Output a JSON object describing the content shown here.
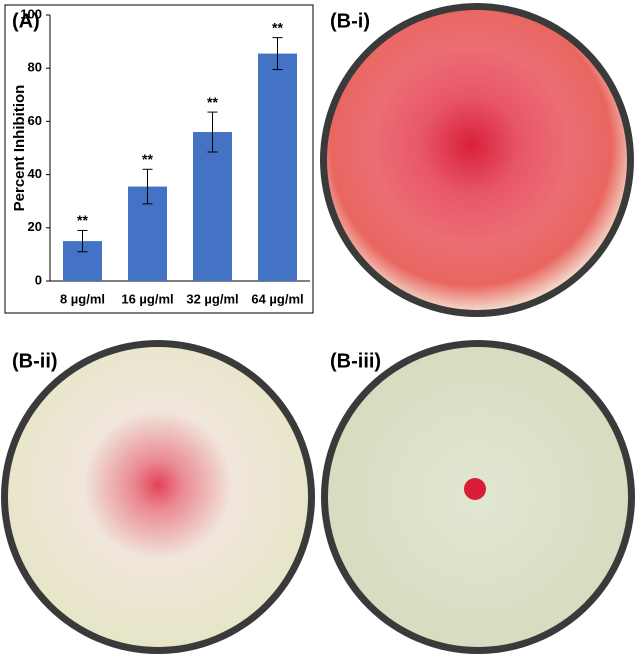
{
  "chart_data": {
    "type": "bar",
    "panel_label": "(A)",
    "ylabel": "Percent Inhibition",
    "categories": [
      "8 µg/ml",
      "16 µg/ml",
      "32 µg/ml",
      "64 µg/ml"
    ],
    "values": [
      15,
      35.5,
      56,
      85.5
    ],
    "errors": [
      4,
      6.5,
      7.5,
      6
    ],
    "annotations": [
      "**",
      "**",
      "**",
      "**"
    ],
    "color": "#4472c4",
    "ylim": [
      0,
      100
    ],
    "yticks": [
      0,
      20,
      40,
      60,
      80,
      100
    ],
    "grid": false
  },
  "panels": [
    "(B-i)",
    "(B-ii)",
    "(B-iii)"
  ]
}
